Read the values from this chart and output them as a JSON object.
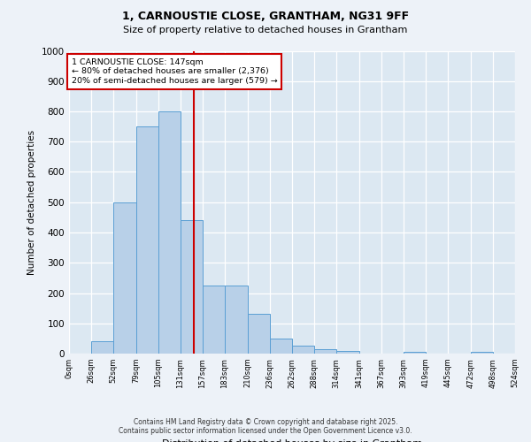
{
  "title_line1": "1, CARNOUSTIE CLOSE, GRANTHAM, NG31 9FF",
  "title_line2": "Size of property relative to detached houses in Grantham",
  "xlabel": "Distribution of detached houses by size in Grantham",
  "ylabel": "Number of detached properties",
  "footer_line1": "Contains HM Land Registry data © Crown copyright and database right 2025.",
  "footer_line2": "Contains public sector information licensed under the Open Government Licence v3.0.",
  "bar_left_edges": [
    0,
    26,
    52,
    79,
    105,
    131,
    157,
    183,
    210,
    236,
    262,
    288,
    314,
    341,
    367,
    393,
    419,
    445,
    472,
    498
  ],
  "bar_widths": [
    26,
    26,
    27,
    26,
    26,
    26,
    26,
    27,
    26,
    26,
    26,
    26,
    27,
    26,
    26,
    26,
    26,
    27,
    26,
    26
  ],
  "bar_heights": [
    0,
    40,
    500,
    750,
    800,
    440,
    225,
    225,
    130,
    50,
    25,
    15,
    8,
    0,
    0,
    5,
    0,
    0,
    7,
    0
  ],
  "bar_color": "#b8d0e8",
  "bar_edgecolor": "#5a9fd4",
  "plot_bg": "#dce8f2",
  "fig_bg": "#edf2f8",
  "grid_color": "#ffffff",
  "vline_x": 147,
  "vline_color": "#cc0000",
  "ann_line1": "1 CARNOUSTIE CLOSE: 147sqm",
  "ann_line2": "← 80% of detached houses are smaller (2,376)",
  "ann_line3": "20% of semi-detached houses are larger (579) →",
  "ann_border_color": "#cc0000",
  "ylim": [
    0,
    1000
  ],
  "yticks": [
    0,
    100,
    200,
    300,
    400,
    500,
    600,
    700,
    800,
    900,
    1000
  ],
  "xtick_values": [
    0,
    26,
    52,
    79,
    105,
    131,
    157,
    183,
    210,
    236,
    262,
    288,
    314,
    341,
    367,
    393,
    419,
    445,
    472,
    498,
    524
  ],
  "xlim_max": 524
}
